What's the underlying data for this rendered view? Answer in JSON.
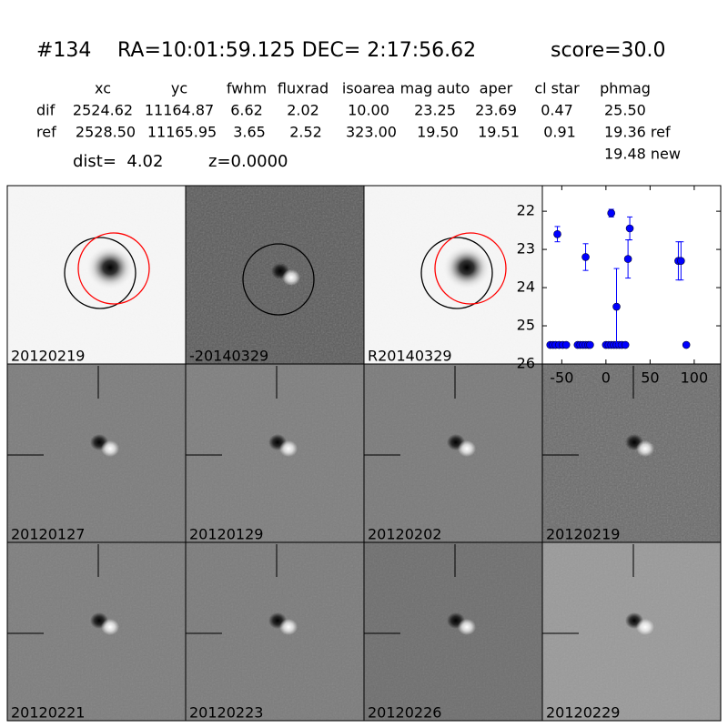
{
  "header": {
    "id": "#134",
    "coords": "RA=10:01:59.125 DEC= 2:17:56.62",
    "score": "score=30.0"
  },
  "table": {
    "columns": [
      "xc",
      "yc",
      "fwhm",
      "fluxrad",
      "isoarea",
      "mag auto",
      "aper",
      "cl star",
      "phmag"
    ],
    "rows": [
      {
        "name": "dif",
        "cells": [
          "2524.62",
          "11164.87",
          "6.62",
          "2.02",
          "10.00",
          "23.25",
          "23.69",
          "0.47",
          "25.50"
        ]
      },
      {
        "name": "ref",
        "cells": [
          "2528.50",
          "11165.95",
          "3.65",
          "2.52",
          "323.00",
          "19.50",
          "19.51",
          "0.91",
          "19.36 ref"
        ]
      }
    ],
    "note": "19.48 new"
  },
  "dist": "dist=  4.02",
  "z": "z=0.0000",
  "panels": [
    {
      "label": "20120219"
    },
    {
      "label": "-20140329"
    },
    {
      "label": "R20140329"
    },
    {
      "label": "20120127"
    },
    {
      "label": "20120129"
    },
    {
      "label": "20120202"
    },
    {
      "label": "20120219",
      "color": "#ff0000"
    },
    {
      "label": "20120221"
    },
    {
      "label": "20120223"
    },
    {
      "label": "20120226"
    },
    {
      "label": "20120229"
    }
  ],
  "chart_data": {
    "type": "scatter",
    "color": "#0000ff",
    "x": [
      -63,
      -60,
      -57,
      -53,
      -49,
      -45,
      -55,
      -32,
      -29,
      -26,
      -23,
      -20,
      -18,
      -23,
      0,
      3,
      6,
      9,
      12,
      15,
      18,
      22,
      6,
      12,
      25,
      27,
      82,
      85,
      91
    ],
    "values": [
      25.5,
      25.5,
      25.5,
      25.5,
      25.5,
      25.5,
      22.6,
      25.5,
      25.5,
      25.5,
      25.5,
      25.5,
      25.5,
      23.2,
      25.5,
      25.5,
      25.5,
      25.5,
      25.5,
      25.5,
      25.5,
      25.5,
      22.05,
      24.5,
      23.25,
      22.45,
      23.3,
      23.3,
      25.5
    ],
    "errors": [
      null,
      null,
      null,
      null,
      null,
      null,
      0.2,
      null,
      null,
      null,
      null,
      null,
      null,
      0.35,
      null,
      null,
      null,
      null,
      null,
      null,
      null,
      null,
      0.1,
      1.0,
      0.5,
      0.3,
      0.5,
      0.5,
      0.05
    ],
    "xlim": [
      -72,
      130
    ],
    "ylim": [
      26,
      21.33
    ],
    "xticks": [
      -50,
      0,
      50,
      100
    ],
    "yticks": [
      22,
      23,
      24,
      25,
      26
    ]
  }
}
